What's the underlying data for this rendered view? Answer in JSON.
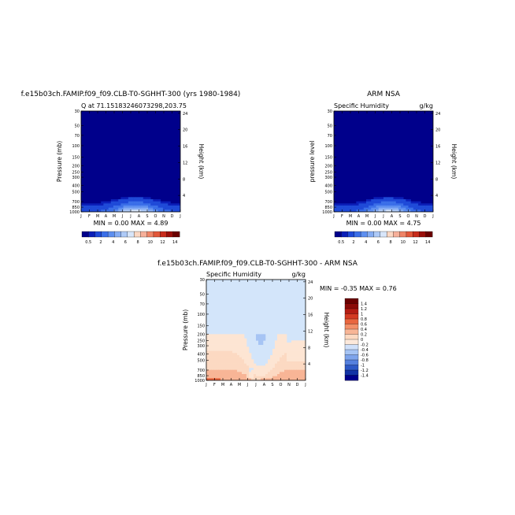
{
  "figure": {
    "top_left_title": "f.e15b03ch.FAMIP.f09_f09.CLB-T0-SGHHT-300 (yrs 1980-1984)",
    "top_right_title": "ARM NSA",
    "bottom_title": "f.e15b03ch.FAMIP.f09_f09.CLB-T0-SGHHT-300 - ARM NSA"
  },
  "chart_data": [
    {
      "type": "heatmap",
      "title": "f.e15b03ch.FAMIP.f09_f09.CLB-T0-SGHHT-300 (yrs 1980-1984)",
      "left_label": "Q at 71.15183246073298,203.75",
      "right_label": "",
      "xlabel": "",
      "ylabel": "Pressure (mb)",
      "y2label": "Height (km)",
      "x_ticks": [
        "J",
        "F",
        "M",
        "A",
        "M",
        "J",
        "J",
        "A",
        "S",
        "O",
        "N",
        "D",
        "J"
      ],
      "y_ticks": [
        "30",
        "50",
        "70",
        "100",
        "150",
        "200",
        "250",
        "300",
        "400",
        "500",
        "700",
        "850",
        "1000"
      ],
      "y2_ticks": [
        "24",
        "20",
        "16",
        "12",
        "8",
        "4"
      ],
      "ylim": [
        1000,
        30
      ],
      "y_scale": "log",
      "min_max": "MIN =   0.00 MAX =   4.89",
      "colorbar_labels": [
        "0.5",
        "2",
        "4",
        "6",
        "8",
        "10",
        "12",
        "14"
      ],
      "colorbar_position": "bottom",
      "peak_value": 4.89
    },
    {
      "type": "heatmap",
      "title": "ARM NSA",
      "left_label": "Specific Humidity",
      "right_label": "g/kg",
      "xlabel": "",
      "ylabel": "pressure level",
      "y2label": "Height (km)",
      "x_ticks": [
        "J",
        "F",
        "M",
        "A",
        "M",
        "J",
        "J",
        "A",
        "S",
        "O",
        "N",
        "D",
        "J"
      ],
      "y_ticks": [
        "30",
        "50",
        "70",
        "100",
        "150",
        "200",
        "250",
        "300",
        "400",
        "500",
        "700",
        "850",
        "1000"
      ],
      "y2_ticks": [
        "24",
        "20",
        "16",
        "12",
        "8",
        "4"
      ],
      "ylim": [
        1000,
        30
      ],
      "y_scale": "log",
      "min_max": "MIN =   0.00 MAX =   4.75",
      "colorbar_labels": [
        "0.5",
        "2",
        "4",
        "6",
        "8",
        "10",
        "12",
        "14"
      ],
      "colorbar_position": "bottom",
      "peak_value": 4.75
    },
    {
      "type": "heatmap",
      "title": "f.e15b03ch.FAMIP.f09_f09.CLB-T0-SGHHT-300 - ARM NSA",
      "left_label": "Specific Humidity",
      "right_label": "g/kg",
      "xlabel": "",
      "ylabel": "Pressure (mb)",
      "y2label": "Height (km)",
      "x_ticks": [
        "J",
        "F",
        "M",
        "A",
        "M",
        "J",
        "J",
        "A",
        "S",
        "O",
        "N",
        "D",
        "J"
      ],
      "y_ticks": [
        "30",
        "50",
        "70",
        "100",
        "150",
        "200",
        "250",
        "300",
        "400",
        "500",
        "700",
        "850",
        "1000"
      ],
      "y2_ticks": [
        "24",
        "20",
        "16",
        "12",
        "8",
        "4"
      ],
      "ylim": [
        1000,
        30
      ],
      "y_scale": "log",
      "min_max": "MIN =  -0.35 MAX =    0.76",
      "colorbar_labels": [
        "1.4",
        "1.2",
        "1",
        "0.8",
        "0.6",
        "0.4",
        "0.2",
        "0",
        "-0.2",
        "-0.4",
        "-0.6",
        "-0.8",
        "-1",
        "-1.2",
        "-1.4"
      ],
      "colorbar_position": "right",
      "range": [
        -0.35,
        0.76
      ]
    }
  ],
  "colors": {
    "seq": [
      "#00008b",
      "#0b1fb8",
      "#1f4ad8",
      "#3b6fe8",
      "#5e8ff0",
      "#86adf4",
      "#aecaf7",
      "#d8e6fa",
      "#fbd8c4",
      "#f6b09a",
      "#ef8467",
      "#e2573a",
      "#c82c1c",
      "#9a0f0a",
      "#6a0000"
    ],
    "div": [
      "#6a0000",
      "#8b0a07",
      "#b41d13",
      "#d43a22",
      "#e9663f",
      "#f38f68",
      "#f8b596",
      "#fcd9c2",
      "#fce8da",
      "#cfe0fa",
      "#a6c4f4",
      "#7ea4ec",
      "#5580de",
      "#2d58c6",
      "#1233a6",
      "#00008b"
    ],
    "map_background": "#00008b",
    "diff_background": "#d3e5fa",
    "diff_warm": "#fde5d3"
  }
}
